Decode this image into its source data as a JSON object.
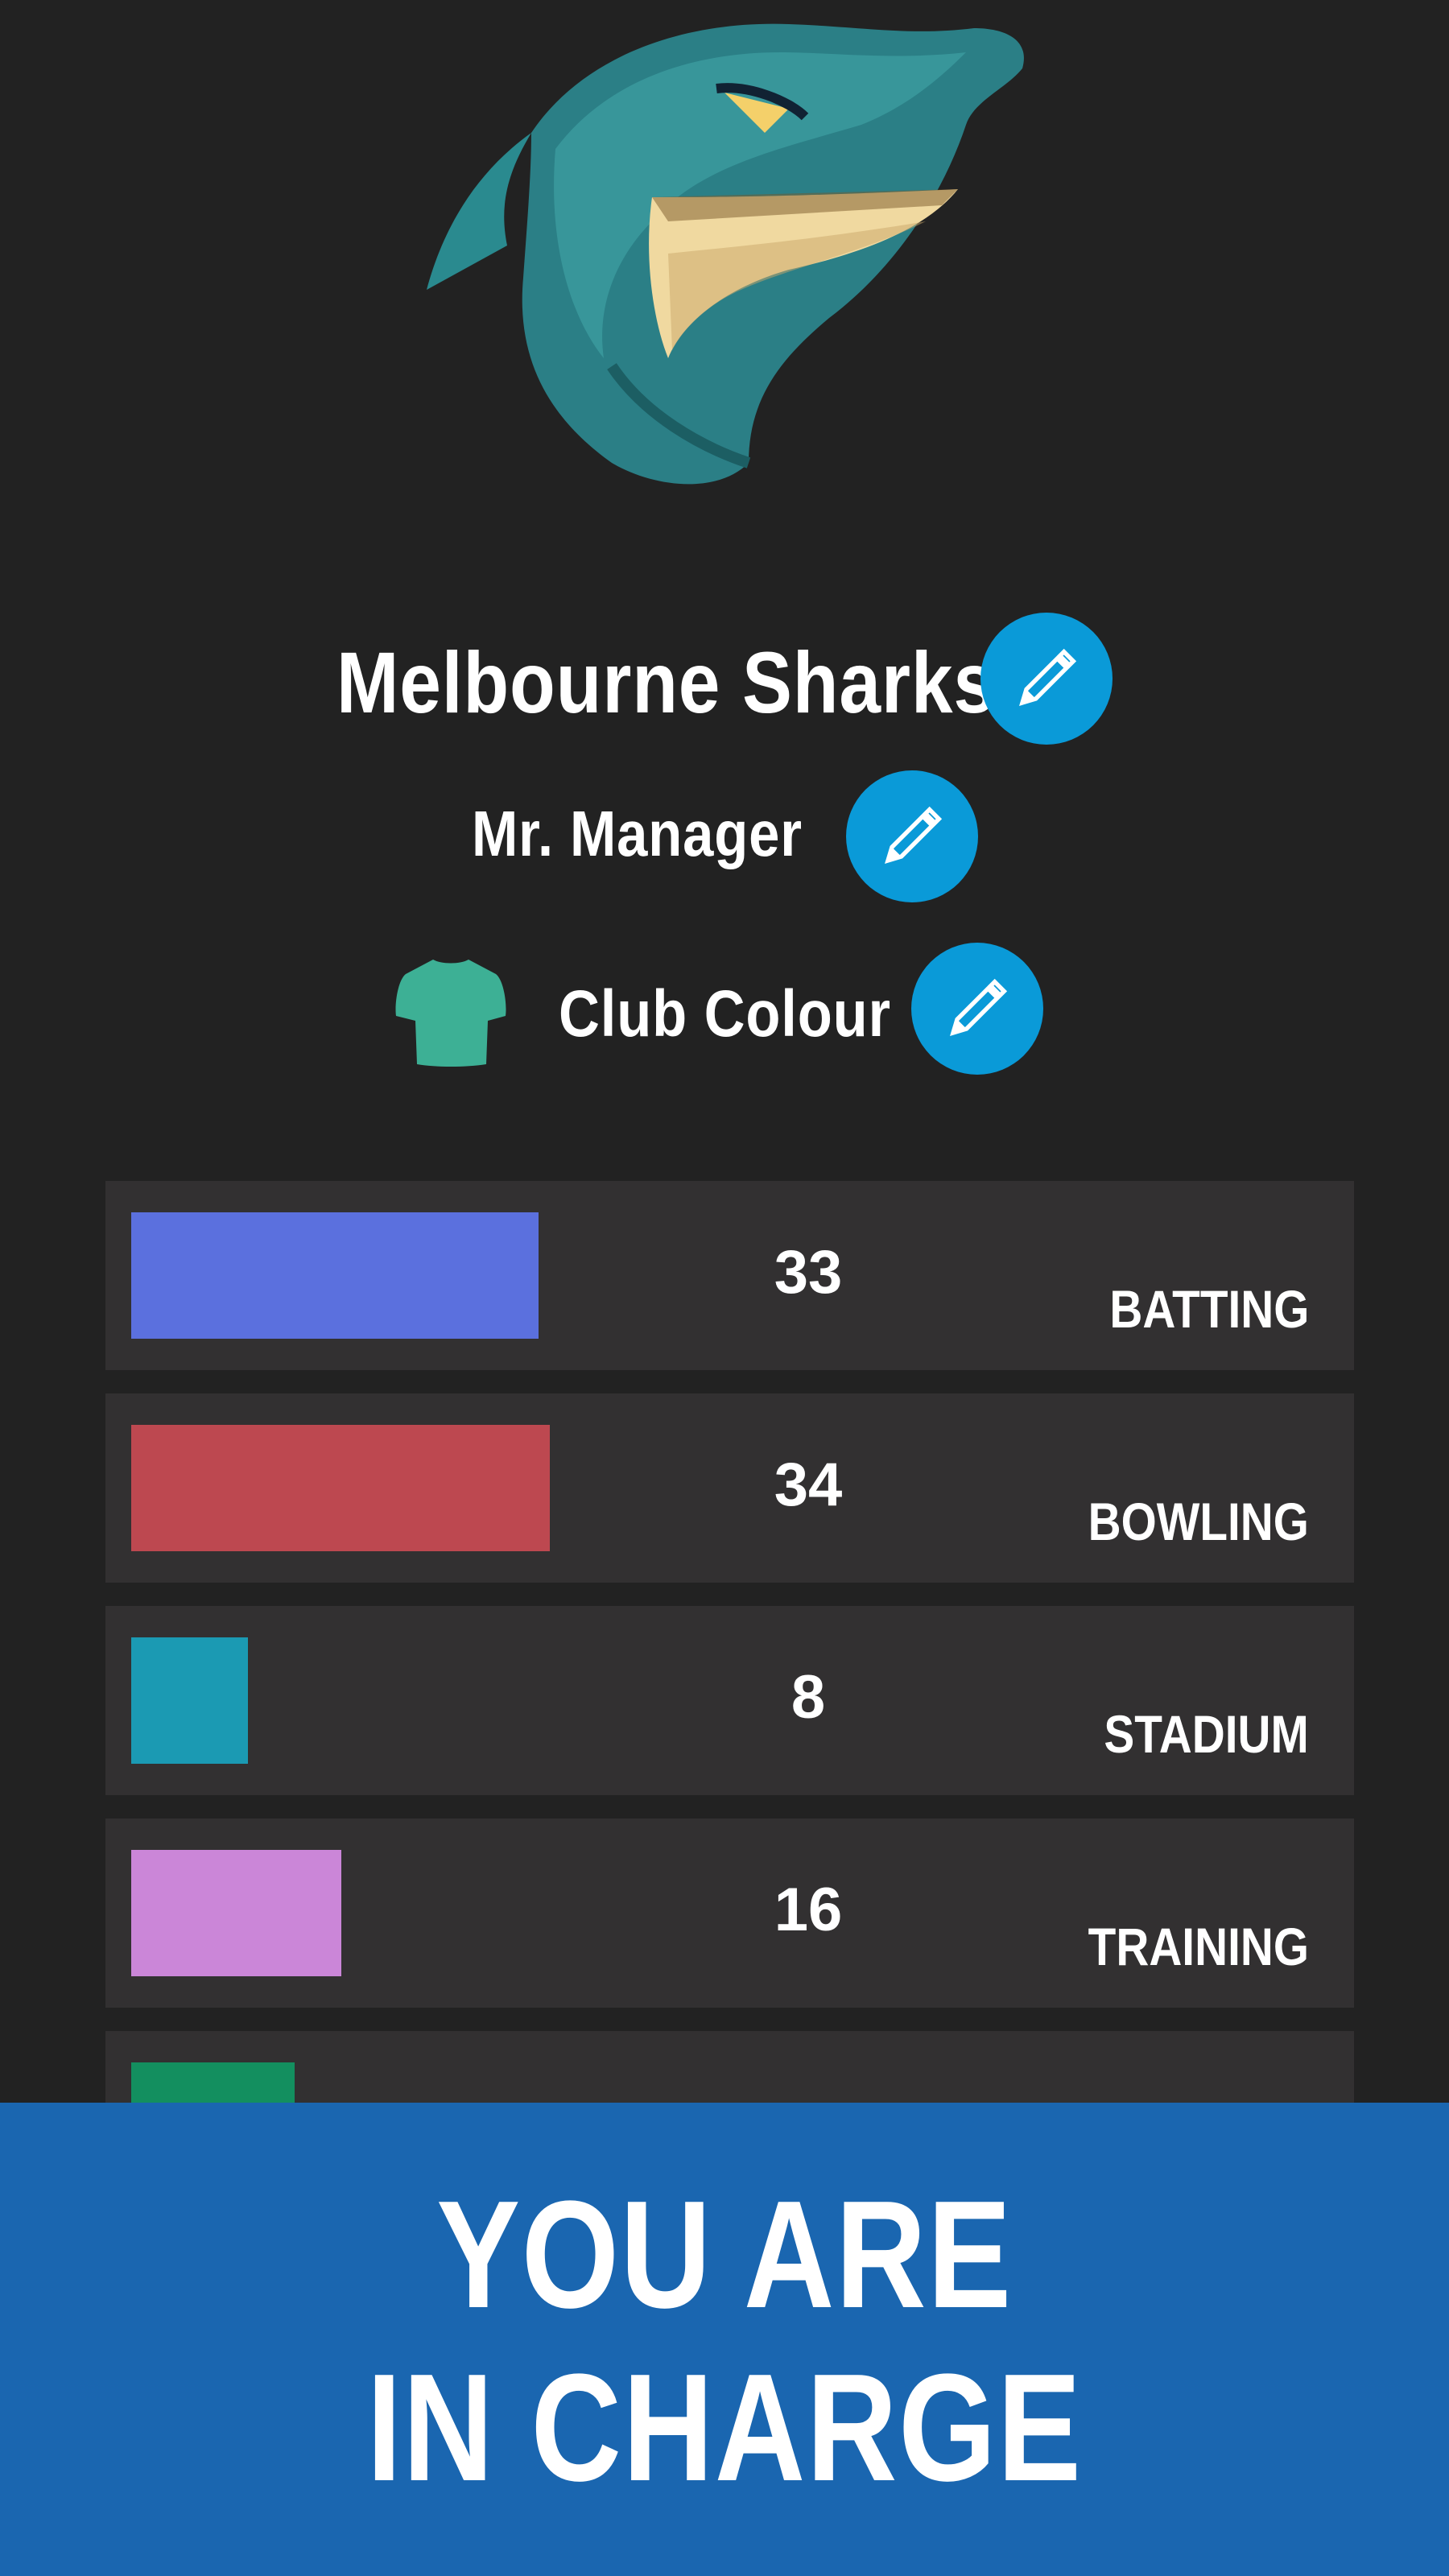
{
  "club": {
    "name": "Melbourne Sharks",
    "manager": "Mr. Manager",
    "colour_label": "Club Colour",
    "colour_hex": "#3db095",
    "logo_icon": "shark-mascot"
  },
  "colors": {
    "background": "#222222",
    "panel": "#323031",
    "edit_button": "#0a9ad8",
    "banner": "#1a66b0"
  },
  "stats": [
    {
      "label": "BATTING",
      "value": "33",
      "level": 33,
      "color": "#5b70de"
    },
    {
      "label": "BOWLING",
      "value": "34",
      "level": 34,
      "color": "#bd4850"
    },
    {
      "label": "STADIUM",
      "value": "8",
      "level": 8,
      "color": "#1b9ab3"
    },
    {
      "label": "TRAINING",
      "value": "16",
      "level": 16,
      "color": "#cb86d8"
    },
    {
      "level": 12,
      "color": "#138f5f"
    }
  ],
  "banner": {
    "line1": "YOU ARE",
    "line2": "IN CHARGE"
  }
}
